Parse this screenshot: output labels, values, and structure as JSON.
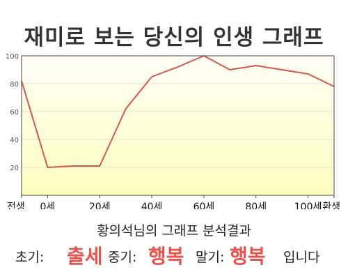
{
  "title": "재미로 보는 당신의 인생 그래프",
  "colors": {
    "line": "#d9534f",
    "fill": "#ffffc0",
    "fill_top": "#fffff6",
    "frame": "#444444",
    "grid": "#dddddd",
    "accent": "#e8534e"
  },
  "chart_data": {
    "type": "area",
    "x_categories": [
      "전생",
      "0세",
      "20세",
      "40세",
      "60세",
      "80세",
      "100세",
      "환생"
    ],
    "points": [
      {
        "x": "전생",
        "y": 82
      },
      {
        "x": "0세",
        "y": 20
      },
      {
        "x": "10세",
        "y": 21
      },
      {
        "x": "20세",
        "y": 21
      },
      {
        "x": "30세",
        "y": 62
      },
      {
        "x": "40세",
        "y": 85
      },
      {
        "x": "50세",
        "y": 92
      },
      {
        "x": "60세",
        "y": 100
      },
      {
        "x": "70세",
        "y": 90
      },
      {
        "x": "80세",
        "y": 93
      },
      {
        "x": "90세",
        "y": 90
      },
      {
        "x": "100세",
        "y": 87
      },
      {
        "x": "환생",
        "y": 78
      }
    ],
    "yticks": [
      "20",
      "40",
      "60",
      "80",
      "100"
    ],
    "ylim": [
      0,
      100
    ],
    "grid": true
  },
  "analysis": {
    "heading": "황의석님의 그래프 분석결과",
    "early_label": "초기:",
    "early_value": "출세",
    "middle_label": "중기:",
    "middle_value": "행복",
    "late_label": "말기:",
    "late_value": "행복",
    "ending": "입니다"
  }
}
